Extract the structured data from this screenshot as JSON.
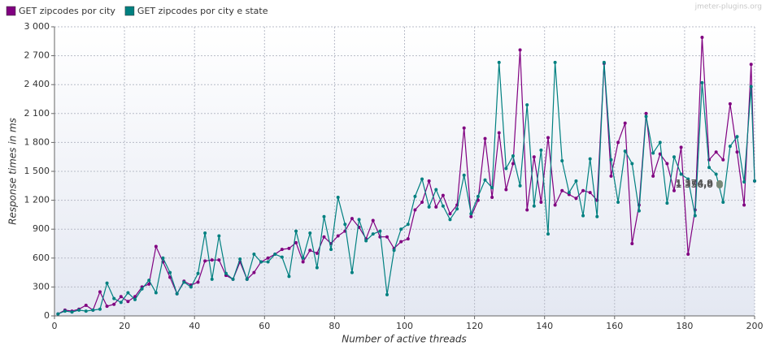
{
  "chart_data": {
    "type": "line",
    "watermark": "jmeter-plugins.org",
    "xlabel": "Number of active threads",
    "ylabel": "Response times in ms",
    "xlim": [
      0,
      200
    ],
    "xticks": [
      0,
      20,
      40,
      60,
      80,
      100,
      120,
      140,
      160,
      180,
      200
    ],
    "ylim": [
      0,
      3000
    ],
    "yticks": [
      0,
      300,
      600,
      900,
      {
        "value": 1200,
        "label": "1 200"
      },
      {
        "value": 1500,
        "label": "1 500"
      },
      {
        "value": 1800,
        "label": "1 800"
      },
      {
        "value": 2100,
        "label": "2 100"
      },
      {
        "value": 2400,
        "label": "2 400"
      },
      {
        "value": 2700,
        "label": "2 700"
      },
      {
        "value": 3000,
        "label": "3 000"
      }
    ],
    "grid": true,
    "x": [
      1,
      3,
      5,
      7,
      9,
      11,
      13,
      15,
      17,
      19,
      21,
      23,
      25,
      27,
      29,
      31,
      33,
      35,
      37,
      39,
      41,
      43,
      45,
      47,
      49,
      51,
      53,
      55,
      57,
      59,
      61,
      63,
      65,
      67,
      69,
      71,
      73,
      75,
      77,
      79,
      81,
      83,
      85,
      87,
      89,
      91,
      93,
      95,
      97,
      99,
      101,
      103,
      105,
      107,
      109,
      111,
      113,
      115,
      117,
      119,
      121,
      123,
      125,
      127,
      129,
      131,
      133,
      135,
      137,
      139,
      141,
      143,
      145,
      147,
      149,
      151,
      153,
      155,
      157,
      159,
      161,
      163,
      165,
      167,
      169,
      171,
      173,
      175,
      177,
      179,
      181,
      183,
      185,
      187,
      189,
      191,
      193,
      195,
      197,
      199,
      200
    ],
    "series": [
      {
        "name": "GET zipcodes por city",
        "color": "#800080",
        "values": [
          20,
          60,
          50,
          70,
          110,
          60,
          250,
          100,
          120,
          200,
          150,
          200,
          300,
          330,
          720,
          560,
          400,
          230,
          360,
          320,
          350,
          570,
          580,
          580,
          420,
          380,
          560,
          380,
          450,
          560,
          600,
          640,
          690,
          700,
          760,
          560,
          680,
          650,
          820,
          750,
          830,
          880,
          1010,
          920,
          800,
          990,
          820,
          820,
          700,
          770,
          800,
          1100,
          1180,
          1400,
          1130,
          1250,
          1060,
          1150,
          1950,
          1030,
          1200,
          1840,
          1230,
          1900,
          1310,
          1580,
          2760,
          1100,
          1650,
          1180,
          1850,
          1150,
          1300,
          1260,
          1220,
          1300,
          1280,
          1200,
          2620,
          1450,
          1800,
          2000,
          750,
          1150,
          2100,
          1450,
          1680,
          1580,
          1300,
          1750,
          640,
          1100,
          2890,
          1620,
          1700,
          1620,
          2200,
          1700,
          1150,
          2610,
          1400
        ]
      },
      {
        "name": "GET zipcodes por city e state",
        "color": "#008080",
        "values": [
          20,
          50,
          40,
          60,
          50,
          60,
          70,
          340,
          180,
          140,
          240,
          170,
          280,
          370,
          240,
          600,
          450,
          230,
          350,
          300,
          440,
          860,
          380,
          830,
          440,
          380,
          590,
          380,
          640,
          560,
          560,
          640,
          610,
          410,
          880,
          600,
          860,
          500,
          1030,
          690,
          1230,
          950,
          450,
          1000,
          780,
          850,
          880,
          220,
          680,
          900,
          950,
          1240,
          1420,
          1130,
          1310,
          1140,
          1000,
          1110,
          1460,
          1060,
          1240,
          1410,
          1330,
          2630,
          1530,
          1660,
          1350,
          2190,
          1140,
          1720,
          850,
          2630,
          1610,
          1280,
          1400,
          1040,
          1630,
          1030,
          2630,
          1620,
          1180,
          1710,
          1580,
          1090,
          2070,
          1690,
          1800,
          1170,
          1650,
          1470,
          1420,
          1040,
          2420,
          1540,
          1470,
          1180,
          1760,
          1860,
          1390,
          2380,
          1400
        ]
      }
    ],
    "annotations": [
      {
        "x": 190,
        "y": 1374.9,
        "text": "1 374,9"
      },
      {
        "x": 190,
        "y": 1356,
        "text": "1 356,0"
      }
    ]
  }
}
